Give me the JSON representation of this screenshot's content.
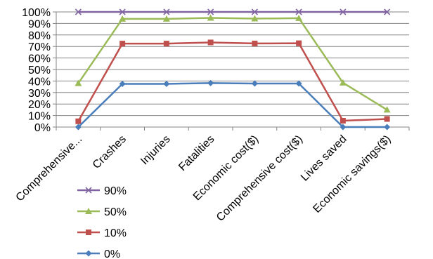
{
  "chart_data": {
    "type": "line",
    "categories": [
      "Comprehensive...",
      "Crashes",
      "Injuries",
      "Fatalities",
      "Economic cost($)",
      "Comprehensive cost($)",
      "Lives saved",
      "Economic savings($)"
    ],
    "y_ticks": [
      "0%",
      "10%",
      "20%",
      "30%",
      "40%",
      "50%",
      "60%",
      "70%",
      "80%",
      "90%",
      "100%"
    ],
    "ylim": [
      0,
      100
    ],
    "grid": "horizontal",
    "legend_position": "bottom-left",
    "series": [
      {
        "name": "0%",
        "color": "#4a7ebb",
        "marker": "diamond",
        "values": [
          0,
          37.5,
          37.5,
          38.2,
          37.8,
          37.8,
          0,
          0
        ]
      },
      {
        "name": "10%",
        "color": "#c0504d",
        "marker": "square",
        "values": [
          5,
          72.5,
          72.5,
          73.5,
          72.6,
          72.8,
          5.5,
          7
        ]
      },
      {
        "name": "50%",
        "color": "#9bbb59",
        "marker": "triangle",
        "values": [
          38,
          94,
          94,
          94.8,
          94.2,
          94.6,
          38.5,
          15
        ]
      },
      {
        "name": "90%",
        "color": "#8064a2",
        "marker": "x",
        "values": [
          100,
          100,
          100,
          100,
          100,
          100,
          100,
          100
        ]
      }
    ],
    "legend_order": [
      "90%",
      "50%",
      "10%",
      "0%"
    ]
  }
}
